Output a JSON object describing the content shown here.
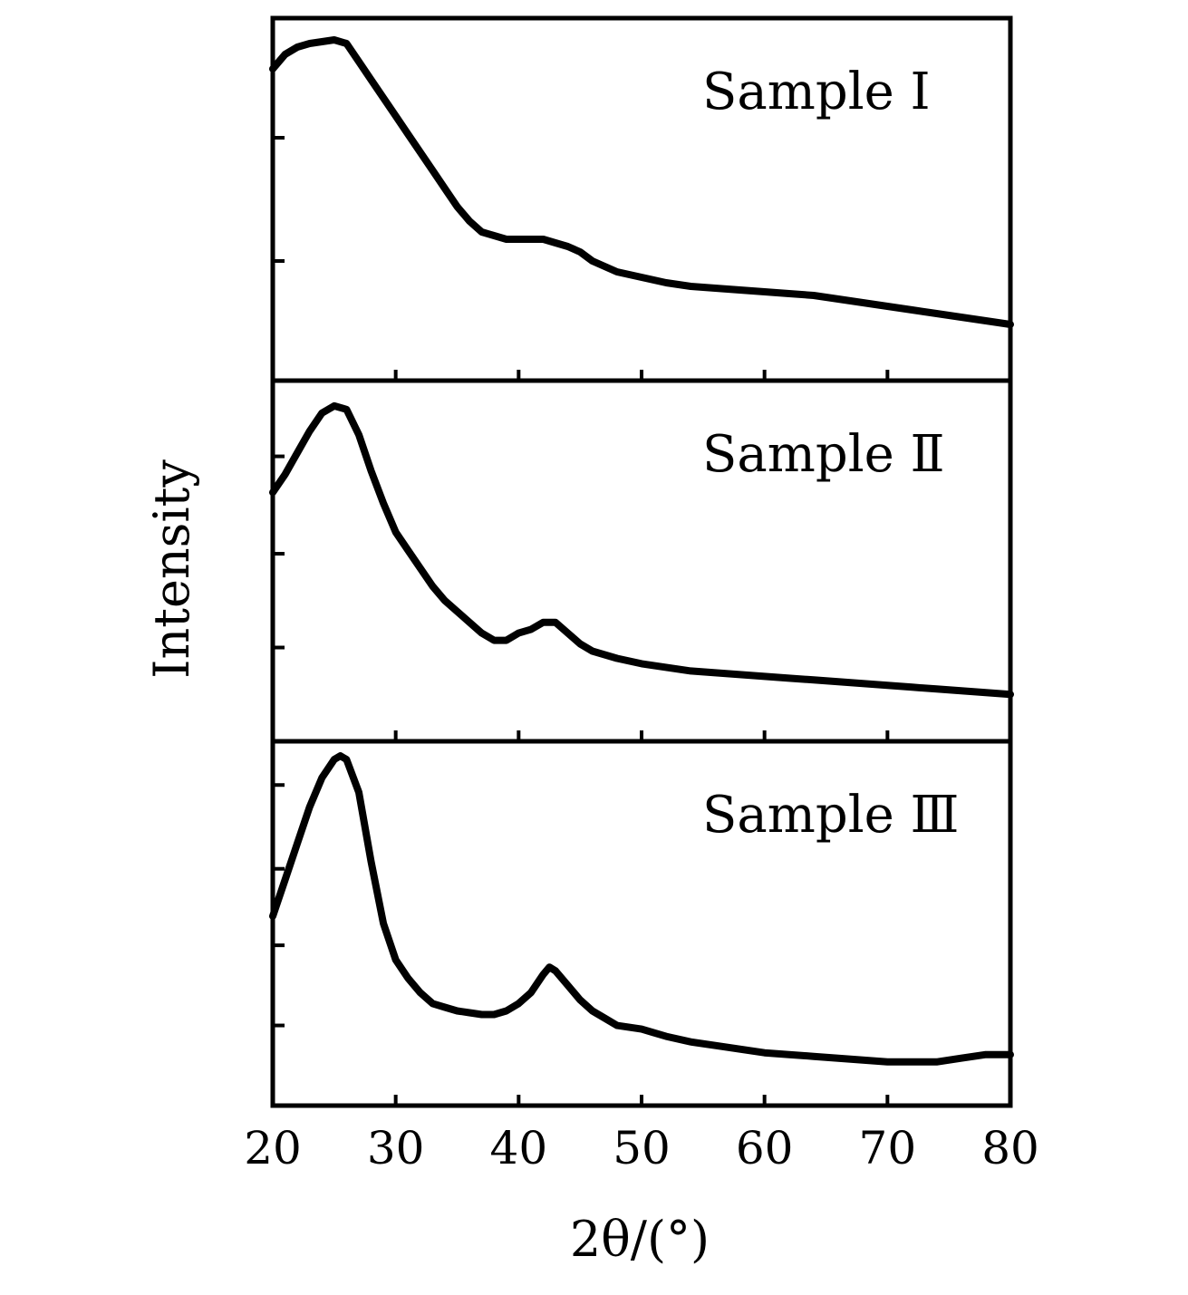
{
  "chart_data": {
    "type": "line",
    "layout": "stacked-panels",
    "shared_x_axis": true,
    "xlabel": "2θ/(°)",
    "ylabel": "Intensity",
    "xlim": [
      20,
      80
    ],
    "x_ticks": [
      20,
      30,
      40,
      50,
      60,
      70,
      80
    ],
    "y_tick_labels_shown": false,
    "grid": false,
    "legend": "none",
    "line_color": "#000000",
    "panels": [
      {
        "label": "Sample Ⅰ",
        "ylim": [
          0,
          1
        ],
        "series": [
          {
            "x": [
              20,
              21,
              22,
              23,
              24,
              25,
              26,
              27,
              28,
              29,
              30,
              31,
              32,
              33,
              34,
              35,
              36,
              37,
              38,
              39,
              40,
              41,
              42,
              43,
              44,
              45,
              46,
              47,
              48,
              50,
              52,
              54,
              56,
              58,
              60,
              62,
              64,
              66,
              68,
              70,
              72,
              74,
              76,
              78,
              80
            ],
            "y": [
              0.86,
              0.9,
              0.92,
              0.93,
              0.935,
              0.94,
              0.93,
              0.88,
              0.83,
              0.78,
              0.73,
              0.68,
              0.63,
              0.58,
              0.53,
              0.48,
              0.44,
              0.41,
              0.4,
              0.39,
              0.39,
              0.39,
              0.39,
              0.38,
              0.37,
              0.355,
              0.33,
              0.315,
              0.3,
              0.285,
              0.27,
              0.26,
              0.255,
              0.25,
              0.245,
              0.24,
              0.235,
              0.225,
              0.215,
              0.205,
              0.195,
              0.185,
              0.175,
              0.165,
              0.155
            ]
          }
        ]
      },
      {
        "label": "Sample Ⅱ",
        "ylim": [
          0,
          1
        ],
        "series": [
          {
            "x": [
              20,
              21,
              22,
              23,
              24,
              25,
              26,
              27,
              28,
              29,
              30,
              31,
              32,
              33,
              34,
              35,
              36,
              37,
              38,
              39,
              40,
              41,
              42,
              43,
              44,
              45,
              46,
              47,
              48,
              50,
              52,
              54,
              56,
              58,
              60,
              62,
              64,
              66,
              68,
              70,
              72,
              74,
              76,
              78,
              80
            ],
            "y": [
              0.69,
              0.74,
              0.8,
              0.86,
              0.91,
              0.93,
              0.92,
              0.85,
              0.75,
              0.66,
              0.58,
              0.53,
              0.48,
              0.43,
              0.39,
              0.36,
              0.33,
              0.3,
              0.28,
              0.28,
              0.3,
              0.31,
              0.33,
              0.33,
              0.3,
              0.27,
              0.25,
              0.24,
              0.23,
              0.215,
              0.205,
              0.195,
              0.19,
              0.185,
              0.18,
              0.175,
              0.17,
              0.165,
              0.16,
              0.155,
              0.15,
              0.145,
              0.14,
              0.135,
              0.13
            ]
          }
        ]
      },
      {
        "label": "Sample Ⅲ",
        "ylim": [
          0,
          1
        ],
        "series": [
          {
            "x": [
              20,
              21,
              22,
              23,
              24,
              25,
              25.5,
              26,
              27,
              28,
              29,
              30,
              31,
              32,
              33,
              34,
              35,
              36,
              37,
              38,
              39,
              40,
              41,
              42,
              42.5,
              43,
              44,
              45,
              46,
              47,
              48,
              50,
              52,
              54,
              56,
              58,
              60,
              62,
              64,
              66,
              68,
              70,
              72,
              74,
              76,
              77,
              78,
              79,
              80
            ],
            "y": [
              0.52,
              0.62,
              0.72,
              0.82,
              0.9,
              0.95,
              0.96,
              0.95,
              0.86,
              0.67,
              0.5,
              0.4,
              0.35,
              0.31,
              0.28,
              0.27,
              0.26,
              0.255,
              0.25,
              0.25,
              0.26,
              0.28,
              0.31,
              0.36,
              0.38,
              0.37,
              0.33,
              0.29,
              0.26,
              0.24,
              0.22,
              0.21,
              0.19,
              0.175,
              0.165,
              0.155,
              0.145,
              0.14,
              0.135,
              0.13,
              0.125,
              0.12,
              0.12,
              0.12,
              0.13,
              0.135,
              0.14,
              0.14,
              0.14
            ]
          }
        ]
      }
    ]
  }
}
